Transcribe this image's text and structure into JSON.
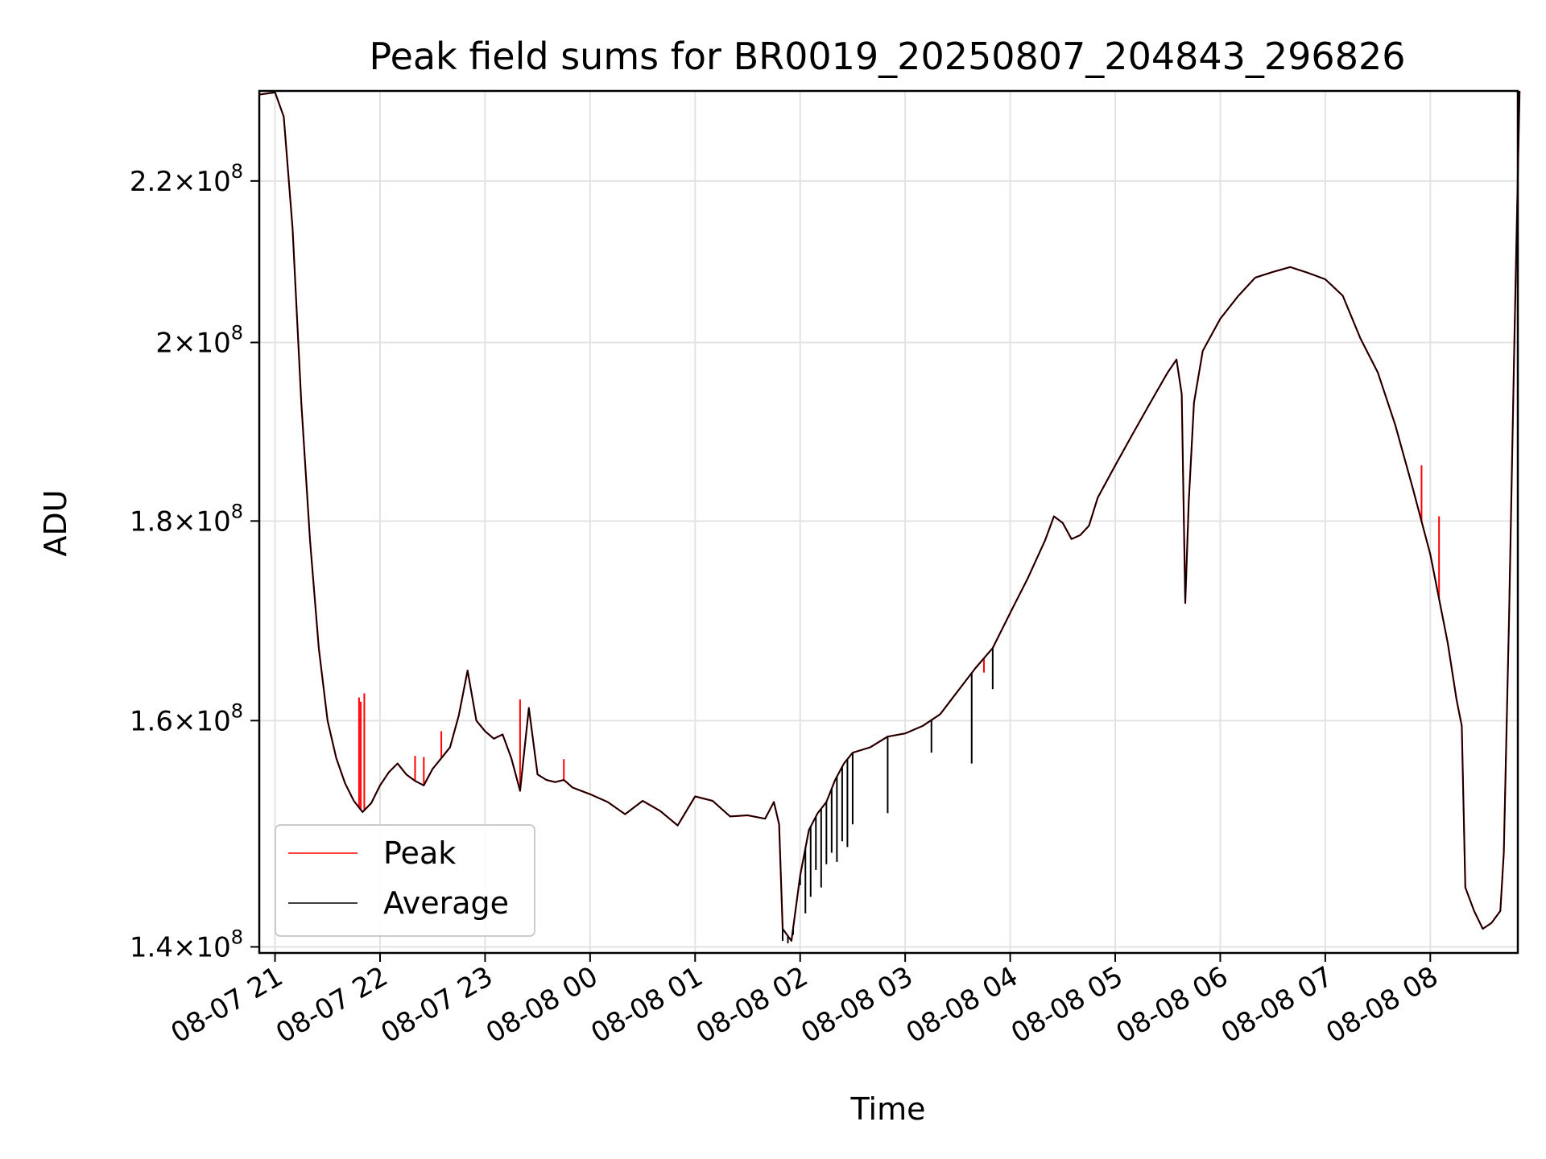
{
  "chart_data": {
    "type": "line",
    "title": "Peak field sums for BR0019_20250807_204843_296826",
    "xlabel": "Time",
    "ylabel": "ADU",
    "yscale": "log",
    "ylim": [
      139500000,
      232000000
    ],
    "xlim": [
      "2025-08-07 20:51",
      "2025-08-08 08:50"
    ],
    "grid": true,
    "legend_position": "lower-left",
    "x_ticks": [
      {
        "t": "2025-08-07 21:00",
        "label": "08-07 21"
      },
      {
        "t": "2025-08-07 22:00",
        "label": "08-07 22"
      },
      {
        "t": "2025-08-07 23:00",
        "label": "08-07 23"
      },
      {
        "t": "2025-08-08 00:00",
        "label": "08-08 00"
      },
      {
        "t": "2025-08-08 01:00",
        "label": "08-08 01"
      },
      {
        "t": "2025-08-08 02:00",
        "label": "08-08 02"
      },
      {
        "t": "2025-08-08 03:00",
        "label": "08-08 03"
      },
      {
        "t": "2025-08-08 04:00",
        "label": "08-08 04"
      },
      {
        "t": "2025-08-08 05:00",
        "label": "08-08 05"
      },
      {
        "t": "2025-08-08 06:00",
        "label": "08-08 06"
      },
      {
        "t": "2025-08-08 07:00",
        "label": "08-08 07"
      },
      {
        "t": "2025-08-08 08:00",
        "label": "08-08 08"
      }
    ],
    "y_ticks": [
      {
        "v": 140000000,
        "mant": "1.4",
        "exp": "8"
      },
      {
        "v": 160000000,
        "mant": "1.6",
        "exp": "8"
      },
      {
        "v": 180000000,
        "mant": "1.8",
        "exp": "8"
      },
      {
        "v": 200000000,
        "mant": "2",
        "exp": "8"
      },
      {
        "v": 220000000,
        "mant": "2.2",
        "exp": "8"
      }
    ],
    "series": [
      {
        "name": "Average",
        "color": "#000000",
        "points": [
          [
            "2025-08-07 20:51",
            231500000
          ],
          [
            "2025-08-07 21:00",
            231800000
          ],
          [
            "2025-08-07 21:05",
            228500000
          ],
          [
            "2025-08-07 21:10",
            214000000
          ],
          [
            "2025-08-07 21:15",
            193000000
          ],
          [
            "2025-08-07 21:20",
            178000000
          ],
          [
            "2025-08-07 21:25",
            167000000
          ],
          [
            "2025-08-07 21:30",
            160000000
          ],
          [
            "2025-08-07 21:35",
            156500000
          ],
          [
            "2025-08-07 21:40",
            154200000
          ],
          [
            "2025-08-07 21:45",
            152600000
          ],
          [
            "2025-08-07 21:50",
            151600000
          ],
          [
            "2025-08-07 21:55",
            152400000
          ],
          [
            "2025-08-07 22:00",
            154000000
          ],
          [
            "2025-08-07 22:05",
            155200000
          ],
          [
            "2025-08-07 22:10",
            156000000
          ],
          [
            "2025-08-07 22:15",
            155000000
          ],
          [
            "2025-08-07 22:20",
            154400000
          ],
          [
            "2025-08-07 22:25",
            154000000
          ],
          [
            "2025-08-07 22:30",
            155500000
          ],
          [
            "2025-08-07 22:35",
            156500000
          ],
          [
            "2025-08-07 22:40",
            157500000
          ],
          [
            "2025-08-07 22:45",
            160500000
          ],
          [
            "2025-08-07 22:50",
            164800000
          ],
          [
            "2025-08-07 22:55",
            160000000
          ],
          [
            "2025-08-07 23:00",
            159000000
          ],
          [
            "2025-08-07 23:05",
            158300000
          ],
          [
            "2025-08-07 23:10",
            158700000
          ],
          [
            "2025-08-07 23:15",
            156500000
          ],
          [
            "2025-08-07 23:20",
            153500000
          ],
          [
            "2025-08-07 23:25",
            161200000
          ],
          [
            "2025-08-07 23:30",
            155000000
          ],
          [
            "2025-08-07 23:35",
            154500000
          ],
          [
            "2025-08-07 23:40",
            154300000
          ],
          [
            "2025-08-07 23:45",
            154500000
          ],
          [
            "2025-08-07 23:50",
            153800000
          ],
          [
            "2025-08-08 00:00",
            153200000
          ],
          [
            "2025-08-08 00:10",
            152500000
          ],
          [
            "2025-08-08 00:20",
            151400000
          ],
          [
            "2025-08-08 00:30",
            152600000
          ],
          [
            "2025-08-08 00:40",
            151700000
          ],
          [
            "2025-08-08 00:50",
            150400000
          ],
          [
            "2025-08-08 01:00",
            153000000
          ],
          [
            "2025-08-08 01:10",
            152600000
          ],
          [
            "2025-08-08 01:20",
            151200000
          ],
          [
            "2025-08-08 01:30",
            151300000
          ],
          [
            "2025-08-08 01:40",
            151000000
          ],
          [
            "2025-08-08 01:45",
            152500000
          ],
          [
            "2025-08-08 01:48",
            150500000
          ],
          [
            "2025-08-08 01:50",
            141500000
          ],
          [
            "2025-08-08 01:55",
            140500000
          ],
          [
            "2025-08-08 02:00",
            146000000
          ],
          [
            "2025-08-08 02:05",
            150000000
          ],
          [
            "2025-08-08 02:10",
            151500000
          ],
          [
            "2025-08-08 02:15",
            152500000
          ],
          [
            "2025-08-08 02:20",
            154500000
          ],
          [
            "2025-08-08 02:25",
            156000000
          ],
          [
            "2025-08-08 02:30",
            157000000
          ],
          [
            "2025-08-08 02:40",
            157500000
          ],
          [
            "2025-08-08 02:50",
            158500000
          ],
          [
            "2025-08-08 03:00",
            158800000
          ],
          [
            "2025-08-08 03:10",
            159500000
          ],
          [
            "2025-08-08 03:20",
            160600000
          ],
          [
            "2025-08-08 03:30",
            162800000
          ],
          [
            "2025-08-08 03:40",
            165000000
          ],
          [
            "2025-08-08 03:50",
            167000000
          ],
          [
            "2025-08-08 04:00",
            170500000
          ],
          [
            "2025-08-08 04:10",
            174000000
          ],
          [
            "2025-08-08 04:20",
            178000000
          ],
          [
            "2025-08-08 04:25",
            180500000
          ],
          [
            "2025-08-08 04:30",
            179800000
          ],
          [
            "2025-08-08 04:35",
            178100000
          ],
          [
            "2025-08-08 04:40",
            178500000
          ],
          [
            "2025-08-08 04:45",
            179500000
          ],
          [
            "2025-08-08 04:50",
            182500000
          ],
          [
            "2025-08-08 05:00",
            186000000
          ],
          [
            "2025-08-08 05:10",
            189500000
          ],
          [
            "2025-08-08 05:20",
            193000000
          ],
          [
            "2025-08-08 05:30",
            196500000
          ],
          [
            "2025-08-08 05:35",
            198000000
          ],
          [
            "2025-08-08 05:38",
            194000000
          ],
          [
            "2025-08-08 05:40",
            171500000
          ],
          [
            "2025-08-08 05:42",
            182000000
          ],
          [
            "2025-08-08 05:45",
            193000000
          ],
          [
            "2025-08-08 05:50",
            199000000
          ],
          [
            "2025-08-08 06:00",
            202800000
          ],
          [
            "2025-08-08 06:10",
            205500000
          ],
          [
            "2025-08-08 06:20",
            207800000
          ],
          [
            "2025-08-08 06:30",
            208500000
          ],
          [
            "2025-08-08 06:40",
            209100000
          ],
          [
            "2025-08-08 06:50",
            208400000
          ],
          [
            "2025-08-08 07:00",
            207600000
          ],
          [
            "2025-08-08 07:10",
            205600000
          ],
          [
            "2025-08-08 07:20",
            200500000
          ],
          [
            "2025-08-08 07:30",
            196500000
          ],
          [
            "2025-08-08 07:40",
            190500000
          ],
          [
            "2025-08-08 07:50",
            183500000
          ],
          [
            "2025-08-08 08:00",
            176500000
          ],
          [
            "2025-08-08 08:10",
            167500000
          ],
          [
            "2025-08-08 08:15",
            162000000
          ],
          [
            "2025-08-08 08:18",
            159500000
          ],
          [
            "2025-08-08 08:20",
            145000000
          ],
          [
            "2025-08-08 08:25",
            143000000
          ],
          [
            "2025-08-08 08:30",
            141500000
          ],
          [
            "2025-08-08 08:35",
            142000000
          ],
          [
            "2025-08-08 08:40",
            143000000
          ],
          [
            "2025-08-08 08:42",
            148000000
          ],
          [
            "2025-08-08 08:45",
            170000000
          ],
          [
            "2025-08-08 08:48",
            200000000
          ],
          [
            "2025-08-08 08:51",
            232000000
          ]
        ],
        "spikes": [
          [
            "2025-08-08 01:50",
            140500000
          ],
          [
            "2025-08-08 01:53",
            140300000
          ],
          [
            "2025-08-08 01:56",
            141000000
          ],
          [
            "2025-08-08 02:00",
            145200000
          ],
          [
            "2025-08-08 02:03",
            142800000
          ],
          [
            "2025-08-08 02:06",
            144200000
          ],
          [
            "2025-08-08 02:09",
            146500000
          ],
          [
            "2025-08-08 02:12",
            145000000
          ],
          [
            "2025-08-08 02:15",
            147000000
          ],
          [
            "2025-08-08 02:18",
            148000000
          ],
          [
            "2025-08-08 02:21",
            147200000
          ],
          [
            "2025-08-08 02:24",
            149000000
          ],
          [
            "2025-08-08 02:27",
            148500000
          ],
          [
            "2025-08-08 02:30",
            150500000
          ],
          [
            "2025-08-08 02:50",
            151500000
          ],
          [
            "2025-08-08 03:15",
            157000000
          ],
          [
            "2025-08-08 03:38",
            156000000
          ],
          [
            "2025-08-08 03:50",
            163000000
          ]
        ]
      },
      {
        "name": "Peak",
        "color": "#ff0000",
        "spikes": [
          [
            "2025-08-07 21:48",
            162200000
          ],
          [
            "2025-08-07 21:49",
            161800000
          ],
          [
            "2025-08-07 21:51",
            162600000
          ],
          [
            "2025-08-07 22:20",
            156700000
          ],
          [
            "2025-08-07 22:25",
            156600000
          ],
          [
            "2025-08-07 22:35",
            159000000
          ],
          [
            "2025-08-07 23:20",
            162000000
          ],
          [
            "2025-08-07 23:45",
            156400000
          ],
          [
            "2025-08-08 03:45",
            164600000
          ],
          [
            "2025-08-08 07:55",
            186000000
          ],
          [
            "2025-08-08 08:05",
            180500000
          ]
        ]
      }
    ]
  }
}
